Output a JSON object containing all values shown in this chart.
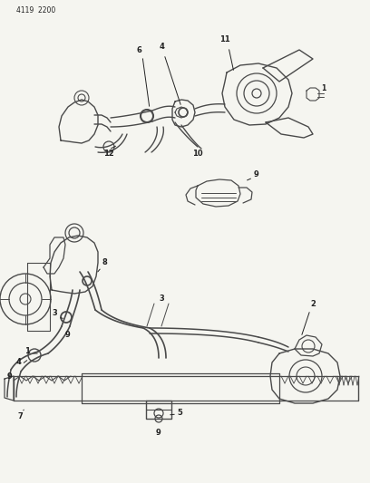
{
  "bg_color": "#f5f5f0",
  "line_color": "#4a4a4a",
  "text_color": "#222222",
  "fig_width": 4.08,
  "fig_height": 5.33,
  "dpi": 100,
  "header_text": "4119  2200"
}
